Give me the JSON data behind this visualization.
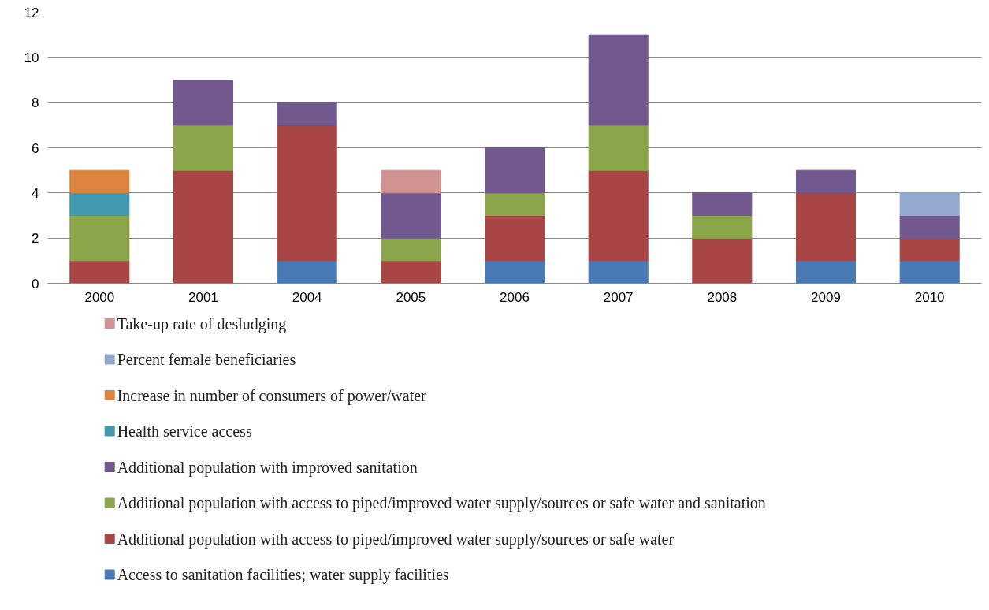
{
  "chart_data": {
    "type": "bar",
    "stacked": true,
    "categories": [
      "2000",
      "2001",
      "2004",
      "2005",
      "2006",
      "2007",
      "2008",
      "2009",
      "2010"
    ],
    "ylim": [
      0,
      12
    ],
    "yticks": [
      0,
      2,
      4,
      6,
      8,
      10,
      12
    ],
    "grid": "y",
    "legend": "bottom",
    "series": [
      {
        "name": "Access to sanitation facilities; water supply facilities",
        "color": "#4a7ab5",
        "values": [
          null,
          null,
          1,
          null,
          1,
          1,
          null,
          1,
          1
        ]
      },
      {
        "name": "Additional population with access to piped/improved water supply/sources or safe water",
        "color": "#a84545",
        "values": [
          1,
          5,
          6,
          1,
          2,
          4,
          2,
          3,
          1
        ]
      },
      {
        "name": "Additional population with access to piped/improved water supply/sources or safe water and sanitation",
        "color": "#8aa54a",
        "values": [
          2,
          2,
          null,
          1,
          1,
          2,
          1,
          null,
          null
        ]
      },
      {
        "name": "Additional population with improved sanitation",
        "color": "#71588f",
        "values": [
          null,
          2,
          1,
          2,
          2,
          4,
          1,
          1,
          1
        ]
      },
      {
        "name": "Health service access",
        "color": "#4198af",
        "values": [
          1,
          null,
          null,
          null,
          null,
          null,
          null,
          null,
          null
        ]
      },
      {
        "name": "Increase in number of consumers of power/water",
        "color": "#db843d",
        "values": [
          1,
          null,
          null,
          null,
          null,
          null,
          null,
          null,
          null
        ]
      },
      {
        "name": "Percent female beneficiaries",
        "color": "#93a9cf",
        "values": [
          null,
          null,
          null,
          null,
          null,
          null,
          null,
          null,
          1
        ]
      },
      {
        "name": "Take-up rate of desludging",
        "color": "#d19392",
        "values": [
          null,
          null,
          null,
          1,
          null,
          null,
          null,
          null,
          null
        ]
      }
    ]
  }
}
